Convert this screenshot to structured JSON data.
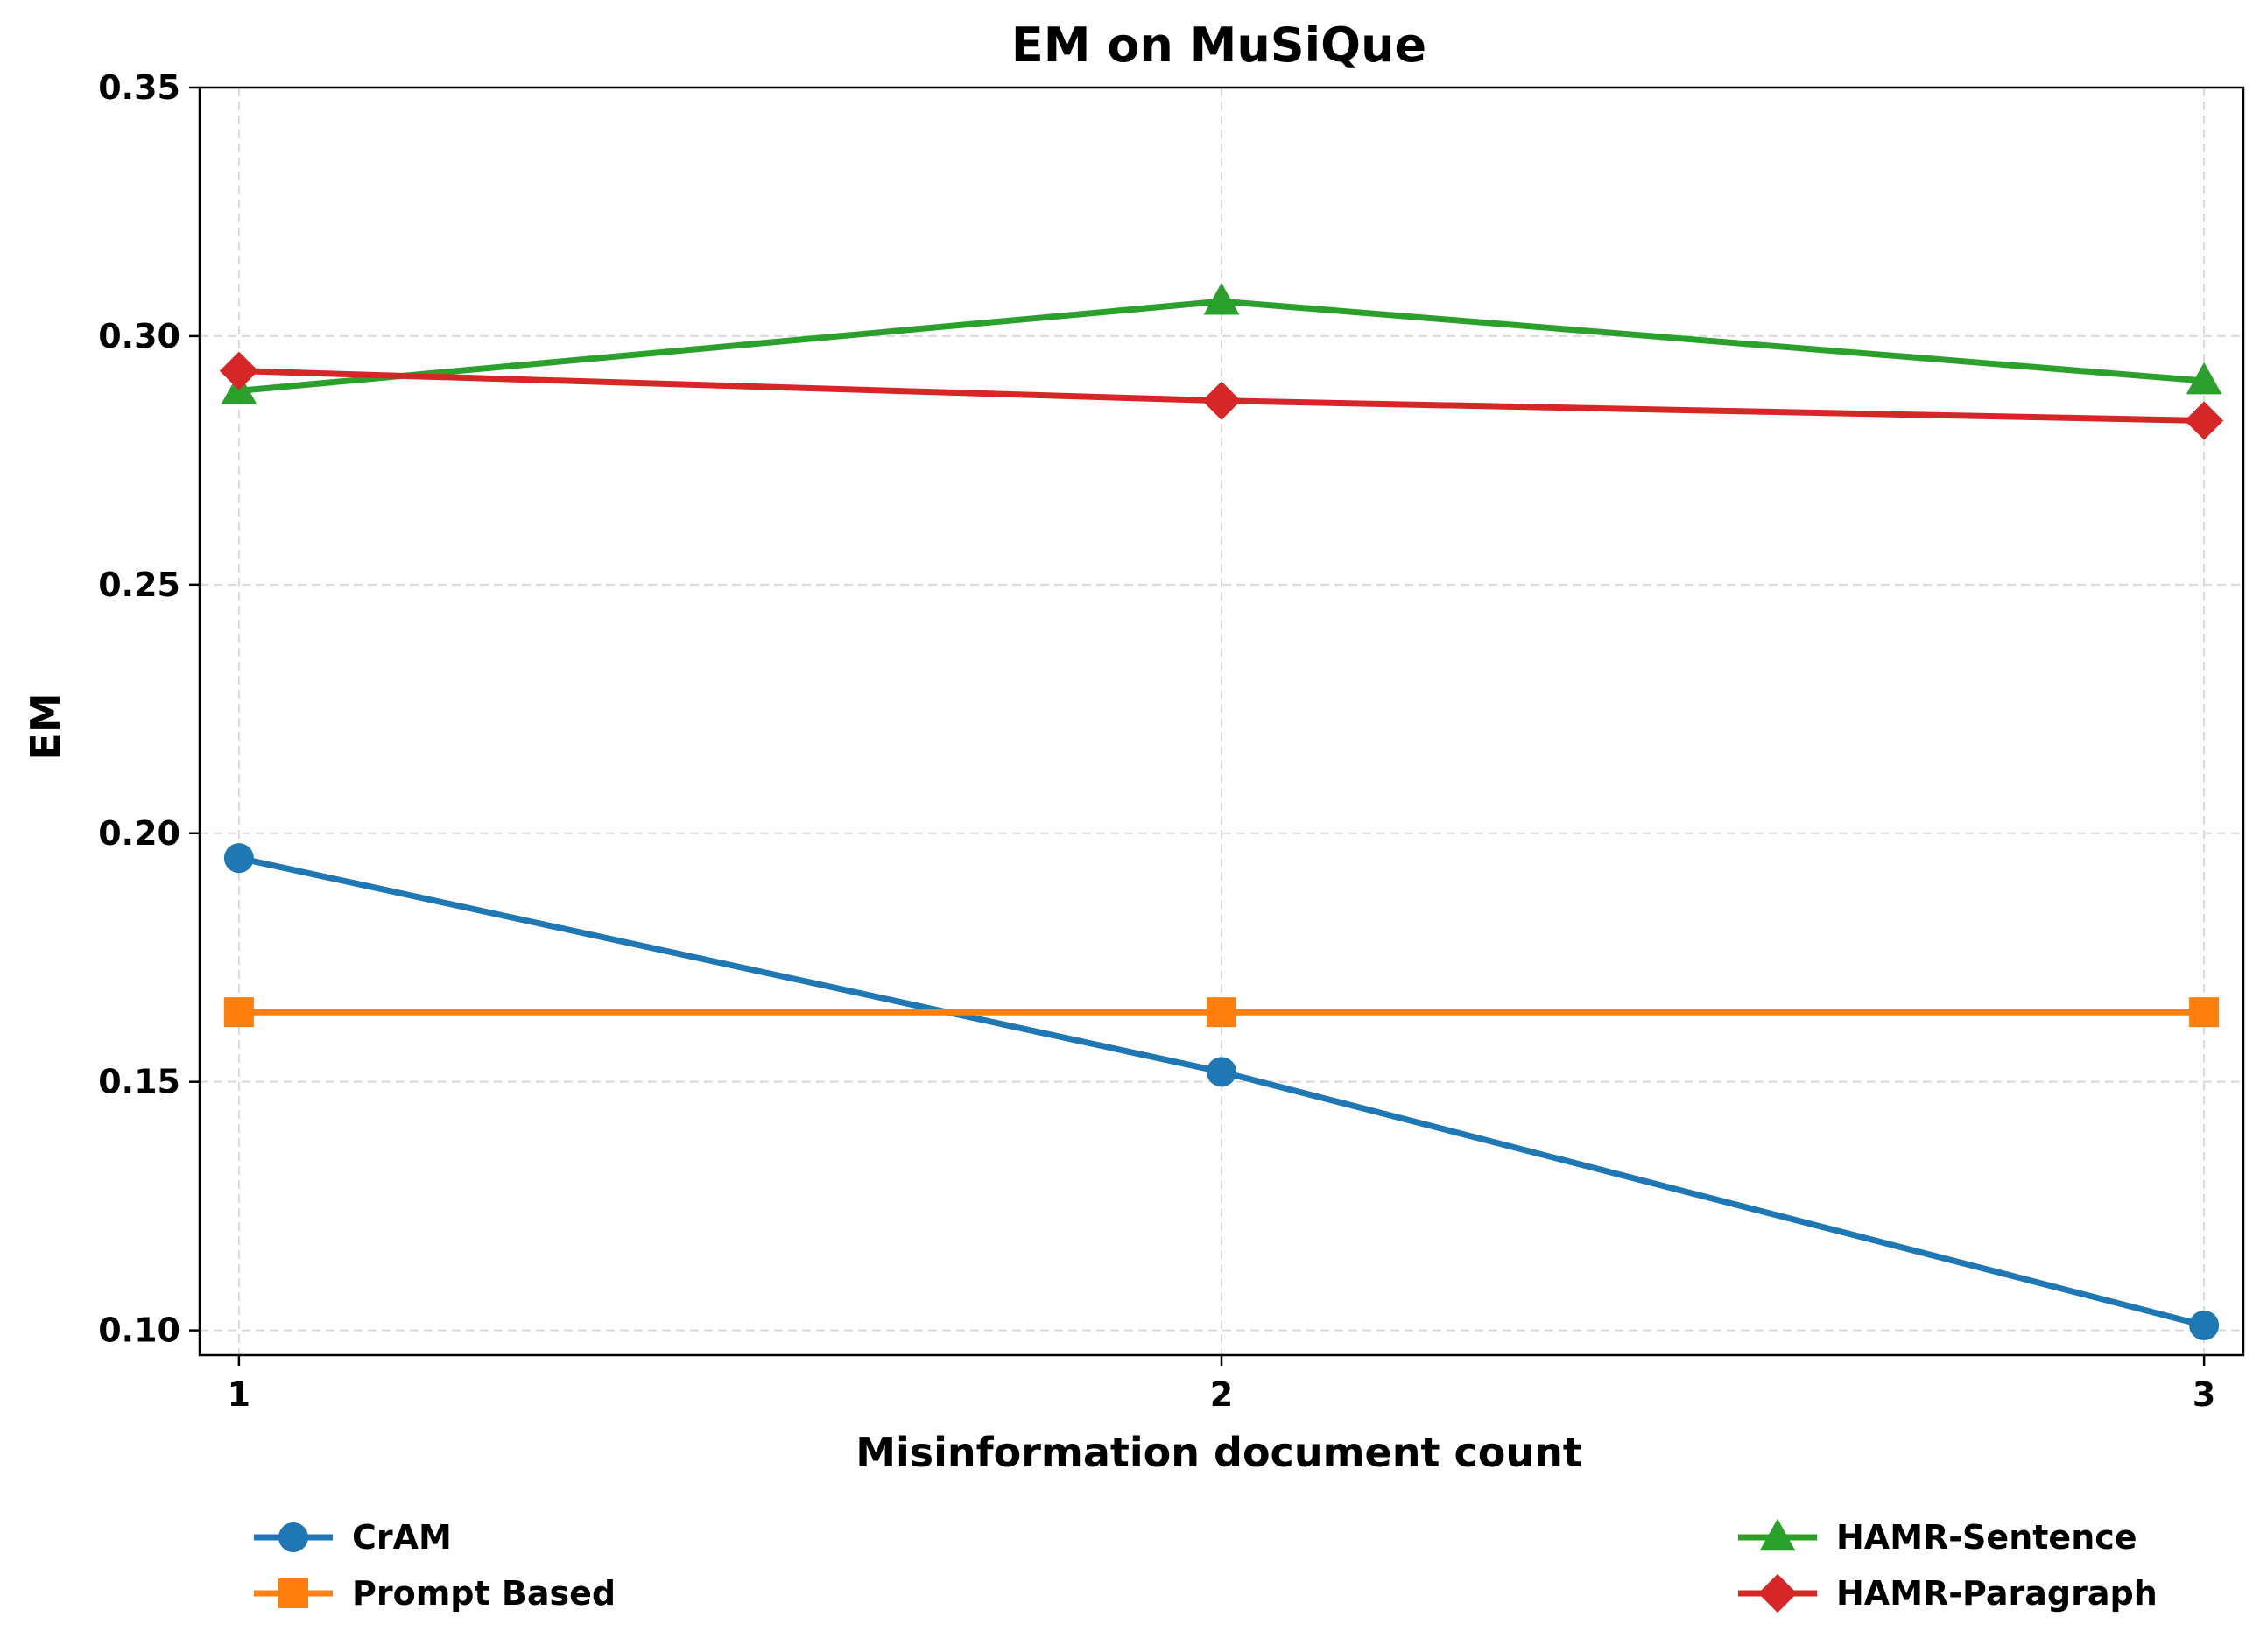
{
  "chart_data": {
    "type": "line",
    "title": "EM on MuSiQue",
    "xlabel": "Misinformation document count",
    "ylabel": "EM",
    "x": [
      1,
      2,
      3
    ],
    "x_tick_labels": [
      "1",
      "2",
      "3"
    ],
    "ylim": [
      0.095,
      0.35
    ],
    "y_ticks": [
      0.1,
      0.15,
      0.2,
      0.25,
      0.3,
      0.35
    ],
    "y_tick_labels": [
      "0.10",
      "0.15",
      "0.20",
      "0.25",
      "0.30",
      "0.35"
    ],
    "grid": true,
    "legend_placement": "bottom",
    "series": [
      {
        "name": "CrAM",
        "values": [
          0.195,
          0.152,
          0.101
        ],
        "color": "#1f77b4",
        "marker": "circle"
      },
      {
        "name": "Prompt Based",
        "values": [
          0.164,
          0.164,
          0.164
        ],
        "color": "#ff7f0e",
        "marker": "square"
      },
      {
        "name": "HAMR-Sentence",
        "values": [
          0.289,
          0.307,
          0.291
        ],
        "color": "#2ca02c",
        "marker": "triangle"
      },
      {
        "name": "HAMR-Paragraph",
        "values": [
          0.293,
          0.287,
          0.283
        ],
        "color": "#d62728",
        "marker": "diamond"
      }
    ]
  }
}
